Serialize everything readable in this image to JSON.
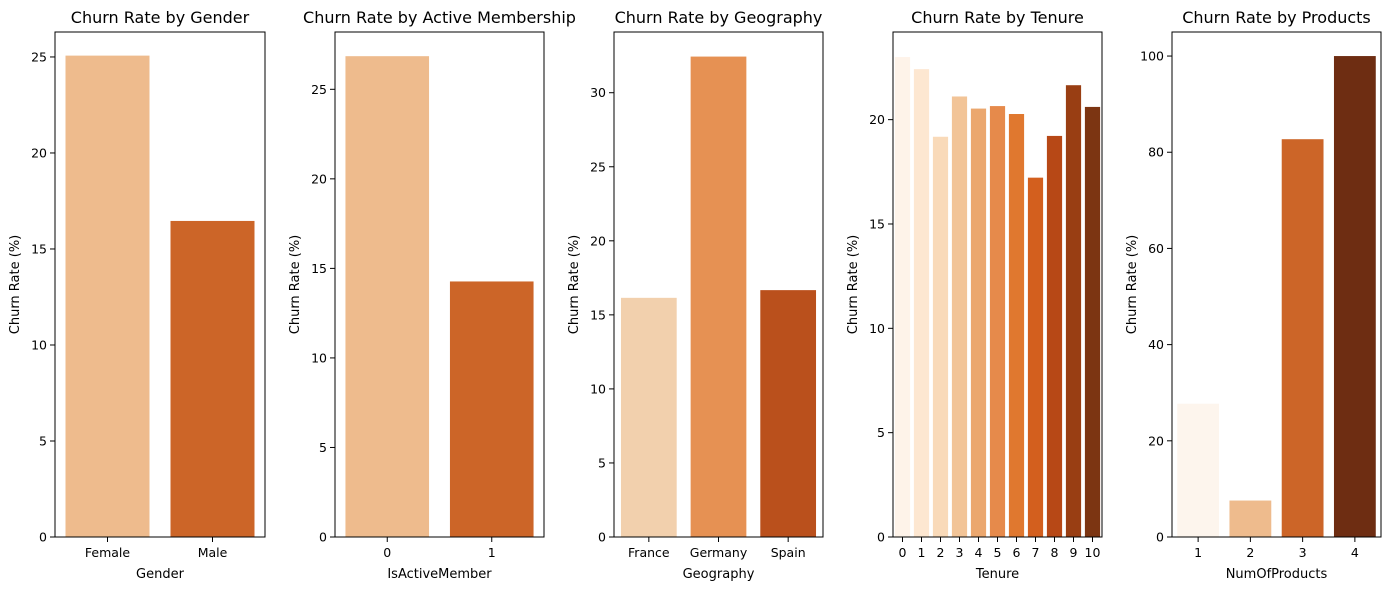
{
  "chart_data": [
    {
      "type": "bar",
      "title": "Churn Rate by Gender",
      "xlabel": "Gender",
      "ylabel": "Churn Rate (%)",
      "categories": [
        "Female",
        "Male"
      ],
      "values": [
        25.07,
        16.46
      ],
      "ylim": [
        0,
        26.3
      ],
      "yticks": [
        0,
        5,
        10,
        15,
        20,
        25
      ],
      "colors": [
        "#eebb8d",
        "#cc6528"
      ]
    },
    {
      "type": "bar",
      "title": "Churn Rate by Active Membership",
      "xlabel": "IsActiveMember",
      "ylabel": "Churn Rate (%)",
      "categories": [
        "0",
        "1"
      ],
      "values": [
        26.85,
        14.27
      ],
      "ylim": [
        0,
        28.2
      ],
      "yticks": [
        0,
        5,
        10,
        15,
        20,
        25
      ],
      "colors": [
        "#eebb8d",
        "#cc6528"
      ]
    },
    {
      "type": "bar",
      "title": "Churn Rate by Geography",
      "xlabel": "Geography",
      "ylabel": "Churn Rate (%)",
      "categories": [
        "France",
        "Germany",
        "Spain"
      ],
      "values": [
        16.15,
        32.44,
        16.67
      ],
      "ylim": [
        0,
        34.1
      ],
      "yticks": [
        0,
        5,
        10,
        15,
        20,
        25,
        30
      ],
      "colors": [
        "#f2d0ad",
        "#e69153",
        "#ba501c"
      ]
    },
    {
      "type": "bar",
      "title": "Churn Rate by Tenure",
      "xlabel": "Tenure",
      "ylabel": "Churn Rate (%)",
      "categories": [
        "0",
        "1",
        "2",
        "3",
        "4",
        "5",
        "6",
        "7",
        "8",
        "9",
        "10"
      ],
      "values": [
        23.0,
        22.42,
        19.18,
        21.11,
        20.53,
        20.65,
        20.27,
        17.22,
        19.22,
        21.65,
        20.61
      ],
      "ylim": [
        0,
        24.2
      ],
      "yticks": [
        0,
        5,
        10,
        15,
        20
      ],
      "colors": [
        "#fef3e9",
        "#fde7d1",
        "#f9dab9",
        "#f2c497",
        "#eba76e",
        "#e68a4b",
        "#e0782f",
        "#d35f1e",
        "#b74816",
        "#993e13",
        "#7c3512"
      ]
    },
    {
      "type": "bar",
      "title": "Churn Rate by Products",
      "xlabel": "NumOfProducts",
      "ylabel": "Churn Rate (%)",
      "categories": [
        "1",
        "2",
        "3",
        "4"
      ],
      "values": [
        27.71,
        7.58,
        82.71,
        100.0
      ],
      "ylim": [
        0,
        105
      ],
      "yticks": [
        0,
        20,
        40,
        60,
        80,
        100
      ],
      "colors": [
        "#fdf5ed",
        "#eebb8d",
        "#cc6528",
        "#6e2d12"
      ]
    }
  ]
}
